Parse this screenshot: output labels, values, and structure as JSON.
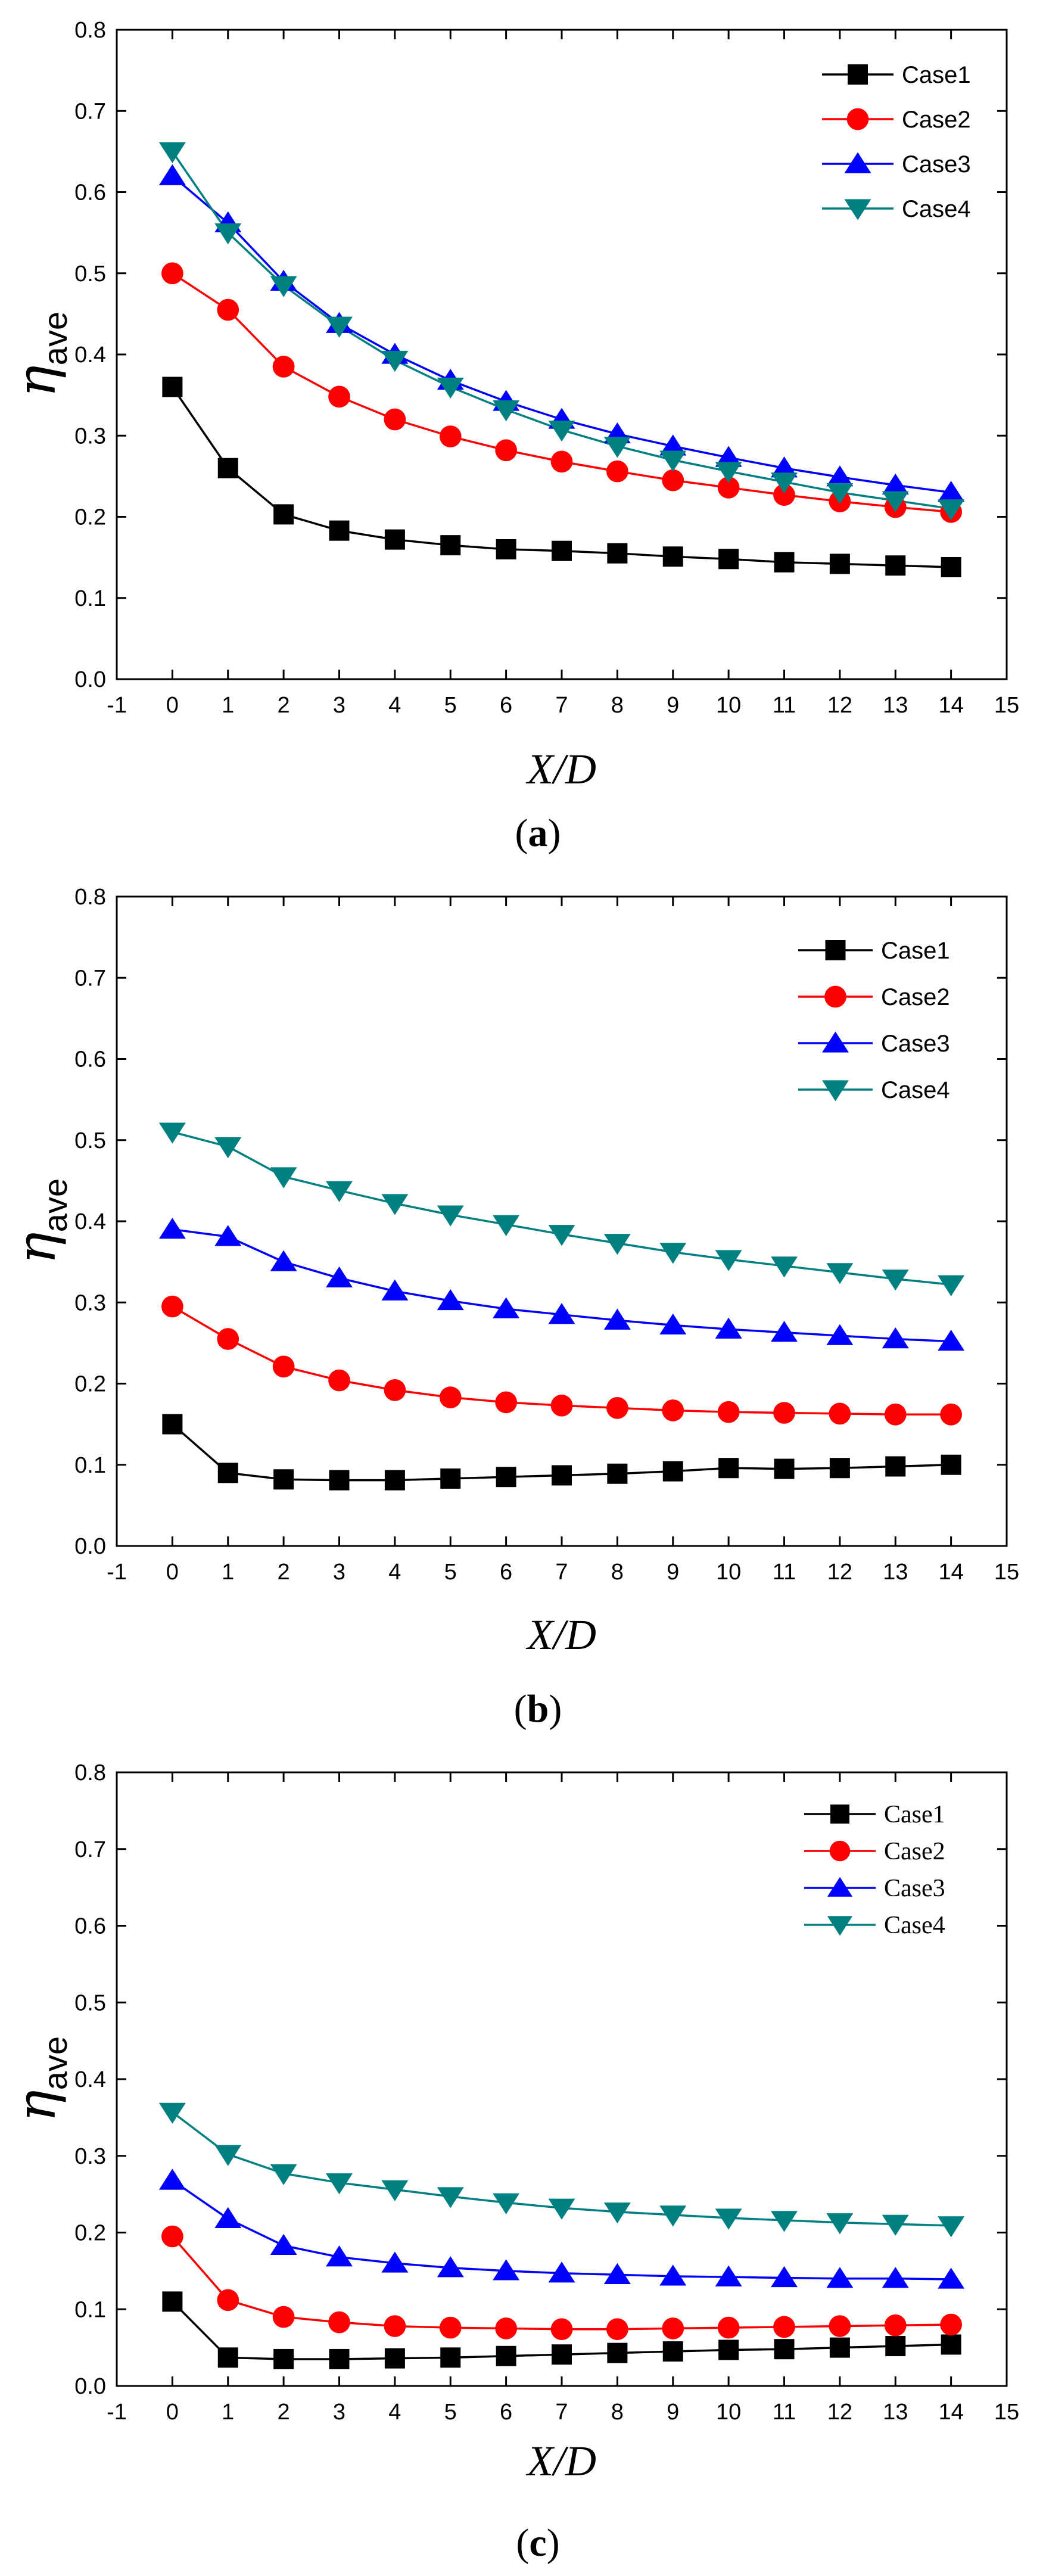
{
  "chart_data": [
    {
      "type": "line",
      "panel_label": "a",
      "x": [
        0,
        1,
        2,
        3,
        4,
        5,
        6,
        7,
        8,
        9,
        10,
        11,
        12,
        13,
        14
      ],
      "xlim": [
        -1,
        15
      ],
      "ylim": [
        0,
        0.8
      ],
      "xticks": [
        "-1",
        "0",
        "1",
        "2",
        "3",
        "4",
        "5",
        "6",
        "7",
        "8",
        "9",
        "10",
        "11",
        "12",
        "13",
        "14",
        "15"
      ],
      "yticks": [
        "0.0",
        "0.1",
        "0.2",
        "0.3",
        "0.4",
        "0.5",
        "0.6",
        "0.7",
        "0.8"
      ],
      "xlabel": "X/D",
      "ylabel": "η",
      "ylabel_sub": "ave",
      "legend_position": "top-right",
      "series": [
        {
          "name": "Case1",
          "color": "#000000",
          "marker": "square",
          "values": [
            0.36,
            0.26,
            0.203,
            0.183,
            0.172,
            0.165,
            0.16,
            0.158,
            0.155,
            0.151,
            0.148,
            0.144,
            0.142,
            0.14,
            0.138
          ]
        },
        {
          "name": "Case2",
          "color": "#ff0000",
          "marker": "circle",
          "values": [
            0.5,
            0.455,
            0.385,
            0.348,
            0.32,
            0.299,
            0.282,
            0.268,
            0.256,
            0.245,
            0.236,
            0.227,
            0.219,
            0.212,
            0.206
          ]
        },
        {
          "name": "Case3",
          "color": "#0000ff",
          "marker": "triangle-up",
          "values": [
            0.62,
            0.562,
            0.49,
            0.438,
            0.4,
            0.368,
            0.342,
            0.32,
            0.302,
            0.287,
            0.273,
            0.26,
            0.249,
            0.239,
            0.23
          ]
        },
        {
          "name": "Case4",
          "color": "#008080",
          "marker": "triangle-down",
          "values": [
            0.65,
            0.55,
            0.485,
            0.435,
            0.393,
            0.36,
            0.332,
            0.307,
            0.287,
            0.27,
            0.256,
            0.243,
            0.23,
            0.22,
            0.21
          ]
        }
      ]
    },
    {
      "type": "line",
      "panel_label": "b",
      "x": [
        0,
        1,
        2,
        3,
        4,
        5,
        6,
        7,
        8,
        9,
        10,
        11,
        12,
        13,
        14
      ],
      "xlim": [
        -1,
        15
      ],
      "ylim": [
        0,
        0.8
      ],
      "xticks": [
        "-1",
        "0",
        "1",
        "2",
        "3",
        "4",
        "5",
        "6",
        "7",
        "8",
        "9",
        "10",
        "11",
        "12",
        "13",
        "14",
        "15"
      ],
      "yticks": [
        "0.0",
        "0.1",
        "0.2",
        "0.3",
        "0.4",
        "0.5",
        "0.6",
        "0.7",
        "0.8"
      ],
      "xlabel": "X/D",
      "ylabel": "η",
      "ylabel_sub": "ave",
      "legend_position": "top-right",
      "series": [
        {
          "name": "Case1",
          "color": "#000000",
          "marker": "square",
          "values": [
            0.15,
            0.09,
            0.082,
            0.081,
            0.081,
            0.083,
            0.085,
            0.087,
            0.089,
            0.092,
            0.096,
            0.095,
            0.096,
            0.098,
            0.1
          ]
        },
        {
          "name": "Case2",
          "color": "#ff0000",
          "marker": "circle",
          "values": [
            0.295,
            0.255,
            0.221,
            0.204,
            0.192,
            0.183,
            0.177,
            0.173,
            0.17,
            0.167,
            0.165,
            0.164,
            0.163,
            0.162,
            0.162
          ]
        },
        {
          "name": "Case3",
          "color": "#0000ff",
          "marker": "triangle-up",
          "values": [
            0.39,
            0.381,
            0.35,
            0.33,
            0.314,
            0.302,
            0.292,
            0.285,
            0.278,
            0.272,
            0.267,
            0.263,
            0.259,
            0.255,
            0.252
          ]
        },
        {
          "name": "Case4",
          "color": "#008080",
          "marker": "triangle-down",
          "values": [
            0.51,
            0.492,
            0.455,
            0.438,
            0.422,
            0.408,
            0.396,
            0.384,
            0.373,
            0.362,
            0.353,
            0.345,
            0.337,
            0.329,
            0.322
          ]
        }
      ]
    },
    {
      "type": "line",
      "panel_label": "c",
      "x": [
        0,
        1,
        2,
        3,
        4,
        5,
        6,
        7,
        8,
        9,
        10,
        11,
        12,
        13,
        14
      ],
      "xlim": [
        -1,
        15
      ],
      "ylim": [
        0,
        0.8
      ],
      "xticks": [
        "-1",
        "0",
        "1",
        "2",
        "3",
        "4",
        "5",
        "6",
        "7",
        "8",
        "9",
        "10",
        "11",
        "12",
        "13",
        "14",
        "15"
      ],
      "yticks": [
        "0.0",
        "0.1",
        "0.2",
        "0.3",
        "0.4",
        "0.5",
        "0.6",
        "0.7",
        "0.8"
      ],
      "xlabel": "X/D",
      "ylabel": "η",
      "ylabel_sub": "ave",
      "legend_position": "top-right",
      "series": [
        {
          "name": "Case1",
          "color": "#000000",
          "marker": "square",
          "values": [
            0.11,
            0.037,
            0.035,
            0.035,
            0.036,
            0.037,
            0.039,
            0.041,
            0.043,
            0.045,
            0.047,
            0.048,
            0.05,
            0.052,
            0.054
          ]
        },
        {
          "name": "Case2",
          "color": "#ff0000",
          "marker": "circle",
          "values": [
            0.195,
            0.112,
            0.09,
            0.083,
            0.078,
            0.076,
            0.075,
            0.074,
            0.074,
            0.075,
            0.076,
            0.077,
            0.078,
            0.079,
            0.08
          ]
        },
        {
          "name": "Case3",
          "color": "#0000ff",
          "marker": "triangle-up",
          "values": [
            0.268,
            0.218,
            0.183,
            0.168,
            0.16,
            0.154,
            0.15,
            0.147,
            0.145,
            0.143,
            0.142,
            0.141,
            0.14,
            0.14,
            0.139
          ]
        },
        {
          "name": "Case4",
          "color": "#008080",
          "marker": "triangle-down",
          "values": [
            0.357,
            0.302,
            0.277,
            0.265,
            0.256,
            0.247,
            0.239,
            0.232,
            0.227,
            0.223,
            0.219,
            0.216,
            0.213,
            0.211,
            0.209
          ]
        }
      ]
    }
  ]
}
